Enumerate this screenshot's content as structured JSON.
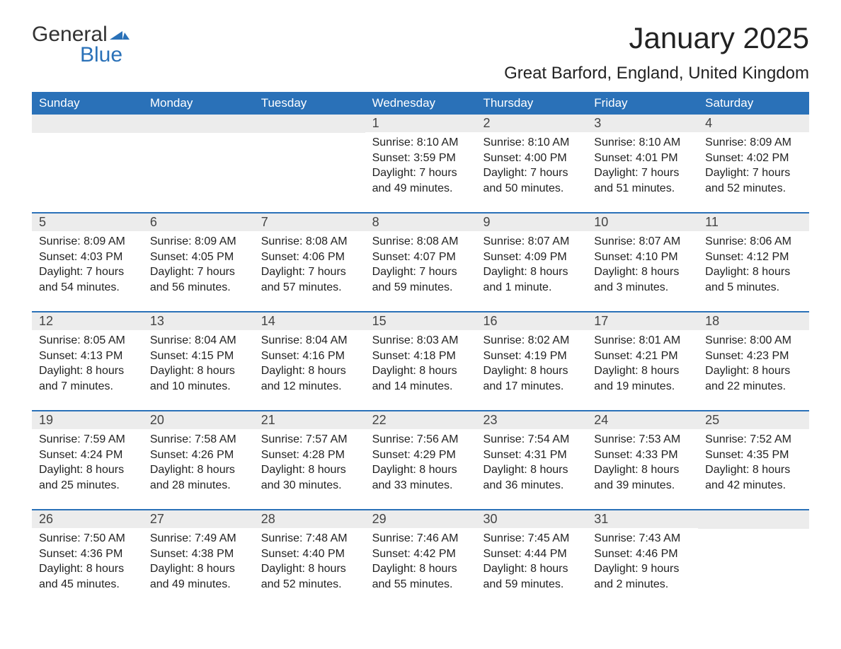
{
  "logo": {
    "text_top": "General",
    "text_bottom": "Blue",
    "text_color_top": "#333333",
    "text_color_bottom": "#2a71b8",
    "icon_color": "#2a71b8"
  },
  "header": {
    "month_title": "January 2025",
    "location": "Great Barford, England, United Kingdom"
  },
  "colors": {
    "header_bg": "#2a71b8",
    "header_text": "#ffffff",
    "daynum_bg": "#ececec",
    "daynum_text": "#444444",
    "body_text": "#222222",
    "row_border": "#2a71b8",
    "background": "#ffffff"
  },
  "weekdays": [
    "Sunday",
    "Monday",
    "Tuesday",
    "Wednesday",
    "Thursday",
    "Friday",
    "Saturday"
  ],
  "weeks": [
    [
      {
        "day": "",
        "sunrise": "",
        "sunset": "",
        "daylight": ""
      },
      {
        "day": "",
        "sunrise": "",
        "sunset": "",
        "daylight": ""
      },
      {
        "day": "",
        "sunrise": "",
        "sunset": "",
        "daylight": ""
      },
      {
        "day": "1",
        "sunrise": "Sunrise: 8:10 AM",
        "sunset": "Sunset: 3:59 PM",
        "daylight": "Daylight: 7 hours and 49 minutes."
      },
      {
        "day": "2",
        "sunrise": "Sunrise: 8:10 AM",
        "sunset": "Sunset: 4:00 PM",
        "daylight": "Daylight: 7 hours and 50 minutes."
      },
      {
        "day": "3",
        "sunrise": "Sunrise: 8:10 AM",
        "sunset": "Sunset: 4:01 PM",
        "daylight": "Daylight: 7 hours and 51 minutes."
      },
      {
        "day": "4",
        "sunrise": "Sunrise: 8:09 AM",
        "sunset": "Sunset: 4:02 PM",
        "daylight": "Daylight: 7 hours and 52 minutes."
      }
    ],
    [
      {
        "day": "5",
        "sunrise": "Sunrise: 8:09 AM",
        "sunset": "Sunset: 4:03 PM",
        "daylight": "Daylight: 7 hours and 54 minutes."
      },
      {
        "day": "6",
        "sunrise": "Sunrise: 8:09 AM",
        "sunset": "Sunset: 4:05 PM",
        "daylight": "Daylight: 7 hours and 56 minutes."
      },
      {
        "day": "7",
        "sunrise": "Sunrise: 8:08 AM",
        "sunset": "Sunset: 4:06 PM",
        "daylight": "Daylight: 7 hours and 57 minutes."
      },
      {
        "day": "8",
        "sunrise": "Sunrise: 8:08 AM",
        "sunset": "Sunset: 4:07 PM",
        "daylight": "Daylight: 7 hours and 59 minutes."
      },
      {
        "day": "9",
        "sunrise": "Sunrise: 8:07 AM",
        "sunset": "Sunset: 4:09 PM",
        "daylight": "Daylight: 8 hours and 1 minute."
      },
      {
        "day": "10",
        "sunrise": "Sunrise: 8:07 AM",
        "sunset": "Sunset: 4:10 PM",
        "daylight": "Daylight: 8 hours and 3 minutes."
      },
      {
        "day": "11",
        "sunrise": "Sunrise: 8:06 AM",
        "sunset": "Sunset: 4:12 PM",
        "daylight": "Daylight: 8 hours and 5 minutes."
      }
    ],
    [
      {
        "day": "12",
        "sunrise": "Sunrise: 8:05 AM",
        "sunset": "Sunset: 4:13 PM",
        "daylight": "Daylight: 8 hours and 7 minutes."
      },
      {
        "day": "13",
        "sunrise": "Sunrise: 8:04 AM",
        "sunset": "Sunset: 4:15 PM",
        "daylight": "Daylight: 8 hours and 10 minutes."
      },
      {
        "day": "14",
        "sunrise": "Sunrise: 8:04 AM",
        "sunset": "Sunset: 4:16 PM",
        "daylight": "Daylight: 8 hours and 12 minutes."
      },
      {
        "day": "15",
        "sunrise": "Sunrise: 8:03 AM",
        "sunset": "Sunset: 4:18 PM",
        "daylight": "Daylight: 8 hours and 14 minutes."
      },
      {
        "day": "16",
        "sunrise": "Sunrise: 8:02 AM",
        "sunset": "Sunset: 4:19 PM",
        "daylight": "Daylight: 8 hours and 17 minutes."
      },
      {
        "day": "17",
        "sunrise": "Sunrise: 8:01 AM",
        "sunset": "Sunset: 4:21 PM",
        "daylight": "Daylight: 8 hours and 19 minutes."
      },
      {
        "day": "18",
        "sunrise": "Sunrise: 8:00 AM",
        "sunset": "Sunset: 4:23 PM",
        "daylight": "Daylight: 8 hours and 22 minutes."
      }
    ],
    [
      {
        "day": "19",
        "sunrise": "Sunrise: 7:59 AM",
        "sunset": "Sunset: 4:24 PM",
        "daylight": "Daylight: 8 hours and 25 minutes."
      },
      {
        "day": "20",
        "sunrise": "Sunrise: 7:58 AM",
        "sunset": "Sunset: 4:26 PM",
        "daylight": "Daylight: 8 hours and 28 minutes."
      },
      {
        "day": "21",
        "sunrise": "Sunrise: 7:57 AM",
        "sunset": "Sunset: 4:28 PM",
        "daylight": "Daylight: 8 hours and 30 minutes."
      },
      {
        "day": "22",
        "sunrise": "Sunrise: 7:56 AM",
        "sunset": "Sunset: 4:29 PM",
        "daylight": "Daylight: 8 hours and 33 minutes."
      },
      {
        "day": "23",
        "sunrise": "Sunrise: 7:54 AM",
        "sunset": "Sunset: 4:31 PM",
        "daylight": "Daylight: 8 hours and 36 minutes."
      },
      {
        "day": "24",
        "sunrise": "Sunrise: 7:53 AM",
        "sunset": "Sunset: 4:33 PM",
        "daylight": "Daylight: 8 hours and 39 minutes."
      },
      {
        "day": "25",
        "sunrise": "Sunrise: 7:52 AM",
        "sunset": "Sunset: 4:35 PM",
        "daylight": "Daylight: 8 hours and 42 minutes."
      }
    ],
    [
      {
        "day": "26",
        "sunrise": "Sunrise: 7:50 AM",
        "sunset": "Sunset: 4:36 PM",
        "daylight": "Daylight: 8 hours and 45 minutes."
      },
      {
        "day": "27",
        "sunrise": "Sunrise: 7:49 AM",
        "sunset": "Sunset: 4:38 PM",
        "daylight": "Daylight: 8 hours and 49 minutes."
      },
      {
        "day": "28",
        "sunrise": "Sunrise: 7:48 AM",
        "sunset": "Sunset: 4:40 PM",
        "daylight": "Daylight: 8 hours and 52 minutes."
      },
      {
        "day": "29",
        "sunrise": "Sunrise: 7:46 AM",
        "sunset": "Sunset: 4:42 PM",
        "daylight": "Daylight: 8 hours and 55 minutes."
      },
      {
        "day": "30",
        "sunrise": "Sunrise: 7:45 AM",
        "sunset": "Sunset: 4:44 PM",
        "daylight": "Daylight: 8 hours and 59 minutes."
      },
      {
        "day": "31",
        "sunrise": "Sunrise: 7:43 AM",
        "sunset": "Sunset: 4:46 PM",
        "daylight": "Daylight: 9 hours and 2 minutes."
      },
      {
        "day": "",
        "sunrise": "",
        "sunset": "",
        "daylight": ""
      }
    ]
  ]
}
